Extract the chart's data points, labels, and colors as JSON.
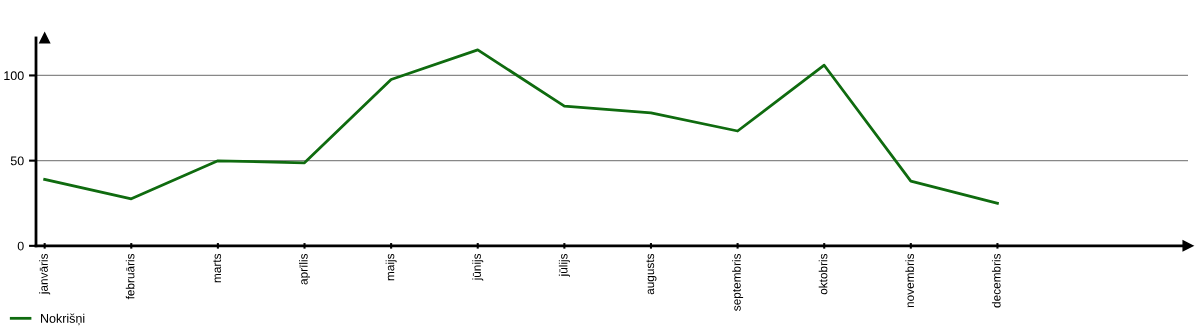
{
  "chart_data": {
    "type": "line",
    "categories": [
      "janvāris",
      "februāris",
      "marts",
      "aprīlis",
      "maijs",
      "jūnijs",
      "jūlijs",
      "augusts",
      "septembris",
      "oktobris",
      "novembris",
      "decembris"
    ],
    "series": [
      {
        "name": "Nokrišņi",
        "color": "#0f6b0f",
        "values": [
          39,
          27.6,
          49.9,
          48.7,
          97.6,
          115,
          82,
          78,
          67.4,
          106,
          38,
          25
        ]
      }
    ],
    "ylim": [
      0,
      122
    ],
    "yticks": [
      0,
      50,
      100
    ],
    "grid": "y",
    "legend": "bottom left",
    "marker": "none",
    "line_style": "solid"
  }
}
